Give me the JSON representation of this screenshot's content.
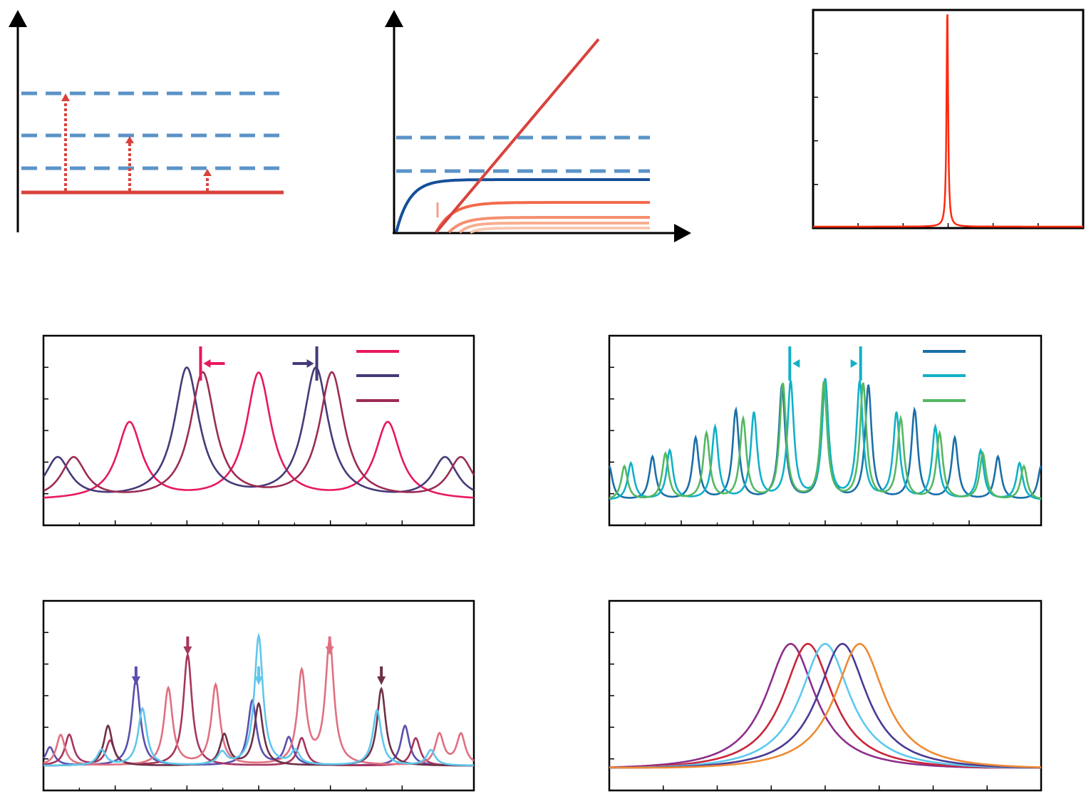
{
  "figure": {
    "colors": {
      "axis": "#000000",
      "dashed_level": "#5b93c7",
      "ground_level": "#d9423d",
      "excitation_arrow": "#d9423d",
      "linear_line": "#d9423d",
      "saturating_curve": "#154f98",
      "saturating_orange": [
        "#f26a4b",
        "#f58f6f",
        "#f7ad90",
        "#f9c7b0"
      ],
      "threshold_mark": "#f3a08a",
      "spike": "#ff2a10"
    },
    "icons": {
      "arrowhead": "filled-triangle-arrowhead",
      "marker": "down-arrow-marker"
    }
  },
  "chart_data": [
    {
      "id": "a",
      "type": "diagram",
      "levels_dashed": 3,
      "excitations": 3,
      "ground_level": 1
    },
    {
      "id": "b",
      "type": "line",
      "dashed_thresholds": 2,
      "series": [
        {
          "kind": "linear",
          "color": "#d9423d"
        },
        {
          "kind": "saturating",
          "color": "#154f98"
        },
        {
          "kind": "saturating",
          "color": "#f26a4b"
        },
        {
          "kind": "saturating",
          "color": "#f58f6f"
        },
        {
          "kind": "saturating",
          "color": "#f7ad90"
        },
        {
          "kind": "saturating",
          "color": "#f9c7b0"
        }
      ]
    },
    {
      "id": "c",
      "type": "line",
      "xlim": [
        0,
        1
      ],
      "ylim": [
        0,
        1
      ],
      "series": [
        {
          "color": "#ff2a10",
          "peak_x": 0.497,
          "peak_height": 1.0
        }
      ]
    },
    {
      "id": "d",
      "type": "line",
      "xlim": [
        0,
        1
      ],
      "ylim": [
        0,
        1
      ],
      "legend_position": "top-right",
      "series": [
        {
          "color": "#e8185e",
          "peaks": [
            0.2,
            0.5,
            0.8
          ],
          "heights": [
            0.5,
            0.82,
            0.5
          ],
          "width": 0.035
        },
        {
          "color": "#453a78",
          "peaks": [
            0.033,
            0.333,
            0.633,
            0.933
          ],
          "heights": [
            0.27,
            0.85,
            0.85,
            0.27
          ],
          "width": 0.035
        },
        {
          "color": "#9c2c55",
          "peaks": [
            0.07,
            0.37,
            0.67,
            0.97
          ],
          "heights": [
            0.27,
            0.82,
            0.82,
            0.27
          ],
          "width": 0.035
        }
      ],
      "markers": [
        {
          "x": 0.365,
          "color": "#e8185e",
          "arrow": "left"
        },
        {
          "x": 0.635,
          "color": "#453a78",
          "arrow": "right"
        }
      ]
    },
    {
      "id": "e",
      "type": "line",
      "xlim": [
        0,
        1
      ],
      "ylim": [
        0,
        1
      ],
      "legend_position": "top-right",
      "series": [
        {
          "color": "#1a6fa8",
          "peaks": [
            0.0,
            0.1,
            0.2,
            0.293,
            0.4,
            0.5,
            0.6,
            0.707,
            0.8,
            0.9,
            1.0
          ],
          "heights": [
            0.22,
            0.28,
            0.4,
            0.58,
            0.74,
            0.78,
            0.74,
            0.58,
            0.4,
            0.28,
            0.22
          ],
          "width": 0.009
        },
        {
          "color": "#12b0c8",
          "peaks": [
            0.05,
            0.14,
            0.245,
            0.335,
            0.42,
            0.5,
            0.58,
            0.665,
            0.755,
            0.86,
            0.95
          ],
          "heights": [
            0.24,
            0.32,
            0.47,
            0.56,
            0.76,
            0.77,
            0.76,
            0.56,
            0.47,
            0.32,
            0.24
          ],
          "width": 0.009
        },
        {
          "color": "#55b862",
          "peaks": [
            0.035,
            0.13,
            0.225,
            0.31,
            0.402,
            0.497,
            0.588,
            0.675,
            0.765,
            0.865,
            0.96
          ],
          "heights": [
            0.22,
            0.3,
            0.43,
            0.52,
            0.75,
            0.76,
            0.75,
            0.52,
            0.43,
            0.3,
            0.22
          ],
          "width": 0.009
        }
      ],
      "markers": [
        {
          "x": 0.418,
          "color": "#12b0c8",
          "arrow": "left"
        },
        {
          "x": 0.582,
          "color": "#12b0c8",
          "arrow": "right"
        }
      ]
    },
    {
      "id": "f",
      "type": "line",
      "xlim": [
        0,
        1
      ],
      "ylim": [
        0,
        1
      ],
      "series": [
        {
          "color": "#5a4fae",
          "peaks": [
            0.015,
            0.215,
            0.485,
            0.57,
            0.84
          ],
          "heights": [
            0.12,
            0.56,
            0.42,
            0.18,
            0.26
          ],
          "width": 0.012
        },
        {
          "color": "#a7355f",
          "peaks": [
            0.06,
            0.335,
            0.6,
            0.865,
            0.155
          ],
          "heights": [
            0.2,
            0.72,
            0.18,
            0.18,
            0.16
          ],
          "width": 0.012
        },
        {
          "color": "#e07081",
          "peaks": [
            0.04,
            0.29,
            0.4,
            0.6,
            0.665,
            0.92,
            0.97
          ],
          "heights": [
            0.2,
            0.5,
            0.52,
            0.6,
            0.8,
            0.2,
            0.2
          ],
          "width": 0.012
        },
        {
          "color": "#6e3048",
          "peaks": [
            0.15,
            0.42,
            0.5,
            0.785
          ],
          "heights": [
            0.26,
            0.2,
            0.4,
            0.5
          ],
          "width": 0.012
        },
        {
          "color": "#5fc7ec",
          "peaks": [
            0.135,
            0.23,
            0.415,
            0.5,
            0.585,
            0.775,
            0.9
          ],
          "heights": [
            0.1,
            0.37,
            0.08,
            0.84,
            0.09,
            0.36,
            0.1
          ],
          "width": 0.012
        }
      ],
      "markers": [
        {
          "x": 0.215,
          "color": "#5a4fae",
          "arrow": "down"
        },
        {
          "x": 0.335,
          "color": "#a7355f",
          "arrow": "down"
        },
        {
          "x": 0.5,
          "color": "#5fc7ec",
          "arrow": "down"
        },
        {
          "x": 0.665,
          "color": "#e07081",
          "arrow": "down"
        },
        {
          "x": 0.785,
          "color": "#6e3048",
          "arrow": "down"
        }
      ]
    },
    {
      "id": "g",
      "type": "line",
      "xlim": [
        0,
        1
      ],
      "ylim": [
        0,
        1
      ],
      "series": [
        {
          "color": "#8e2e8c",
          "peak_x": 0.42,
          "peak_height": 0.85
        },
        {
          "color": "#c8263a",
          "peak_x": 0.46,
          "peak_height": 0.85
        },
        {
          "color": "#5ccaee",
          "peak_x": 0.5,
          "peak_height": 0.85
        },
        {
          "color": "#4a3a96",
          "peak_x": 0.54,
          "peak_height": 0.85
        },
        {
          "color": "#ee8b34",
          "peak_x": 0.58,
          "peak_height": 0.85
        }
      ]
    }
  ]
}
